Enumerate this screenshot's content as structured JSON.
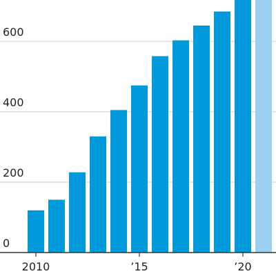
{
  "chart_data": {
    "type": "bar",
    "title": "",
    "xlabel": "",
    "ylabel": "",
    "x": [
      2010,
      2011,
      2012,
      2013,
      2014,
      2015,
      2016,
      2017,
      2018,
      2019,
      2020,
      2021
    ],
    "values": [
      120,
      150,
      228,
      330,
      405,
      475,
      558,
      603,
      645,
      685,
      725,
      725
    ],
    "highlight_last_estimate": true,
    "ylim": [
      0,
      700
    ],
    "y_ticks": [
      0,
      200,
      400,
      600
    ],
    "y_tick_labels": [
      "0",
      "200",
      "400",
      "600"
    ],
    "x_ticks": [
      2010,
      2015,
      2020
    ],
    "x_tick_labels": [
      "2010",
      "’15",
      "’20"
    ],
    "grid": true,
    "colors": {
      "bar": "#0099dc",
      "bar_last": "#9ccff0"
    }
  }
}
